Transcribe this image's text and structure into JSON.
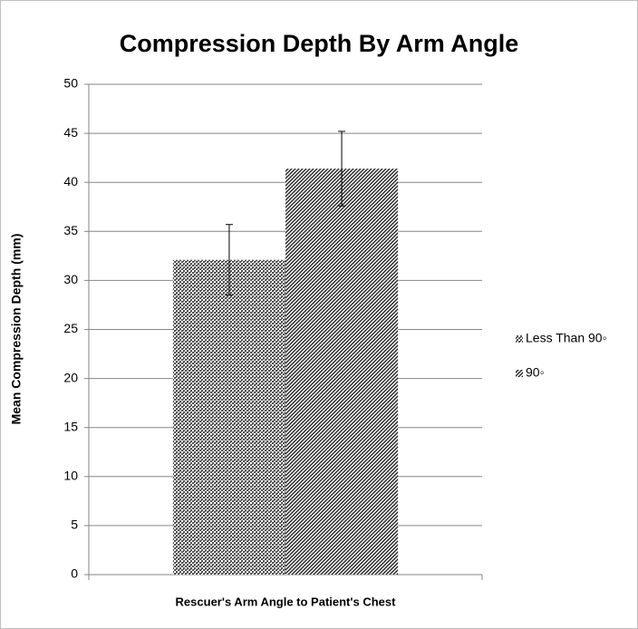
{
  "chart_data": {
    "type": "bar",
    "title": "Compression Depth By Arm Angle",
    "x_label": "Rescuer's Arm Angle to Patient's Chest",
    "y_label": "Mean Compression Depth (mm)",
    "categories": [
      null
    ],
    "series": [
      {
        "name": "Less Than 90◦",
        "color": "#555555",
        "pattern": "crosshatch",
        "values": [
          32.1
        ],
        "errors": [
          3.6
        ]
      },
      {
        "name": "90◦",
        "color": "#222222",
        "pattern": "diagonal",
        "values": [
          41.4
        ],
        "errors": [
          3.8
        ]
      }
    ],
    "ylim": [
      0,
      50
    ],
    "yticks": [
      0,
      5,
      10,
      15,
      20,
      25,
      30,
      35,
      40,
      45,
      50
    ],
    "grid": true,
    "legend": "right"
  }
}
